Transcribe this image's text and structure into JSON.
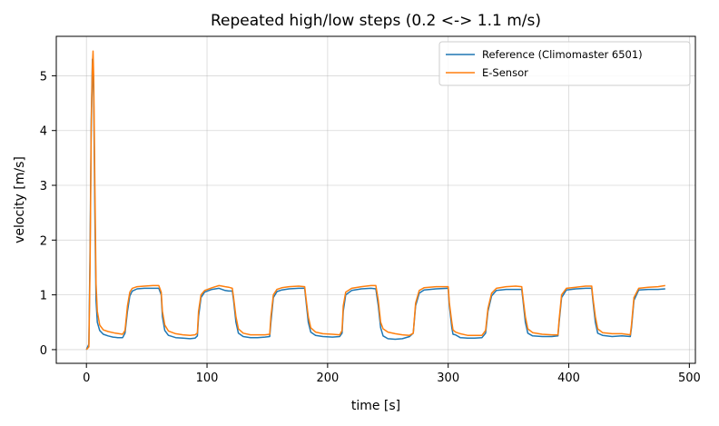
{
  "chart_data": {
    "type": "line",
    "title": "Repeated high/low steps (0.2 <-> 1.1 m/s)",
    "xlabel": "time [s]",
    "ylabel": "velocity [m/s]",
    "xlim": [
      -25,
      505
    ],
    "ylim": [
      -0.25,
      5.72
    ],
    "xticks": [
      0,
      100,
      200,
      300,
      400,
      500
    ],
    "yticks": [
      0,
      1,
      2,
      3,
      4,
      5
    ],
    "grid": true,
    "legend_position": "top-right",
    "series": [
      {
        "name": "Reference (Climomaster 6501)",
        "color": "#1f77b4",
        "points": [
          [
            0,
            0
          ],
          [
            2,
            0.1
          ],
          [
            3,
            1.8
          ],
          [
            4,
            4.2
          ],
          [
            5,
            5.3
          ],
          [
            6,
            4.6
          ],
          [
            7,
            2.5
          ],
          [
            8,
            0.9
          ],
          [
            9,
            0.5
          ],
          [
            11,
            0.35
          ],
          [
            14,
            0.28
          ],
          [
            18,
            0.25
          ],
          [
            22,
            0.23
          ],
          [
            26,
            0.22
          ],
          [
            30,
            0.22
          ],
          [
            32,
            0.3
          ],
          [
            34,
            0.7
          ],
          [
            36,
            0.98
          ],
          [
            38,
            1.07
          ],
          [
            42,
            1.11
          ],
          [
            48,
            1.12
          ],
          [
            55,
            1.12
          ],
          [
            60,
            1.12
          ],
          [
            62,
            1.0
          ],
          [
            63,
            0.6
          ],
          [
            65,
            0.35
          ],
          [
            68,
            0.26
          ],
          [
            74,
            0.22
          ],
          [
            80,
            0.21
          ],
          [
            86,
            0.2
          ],
          [
            90,
            0.21
          ],
          [
            92,
            0.25
          ],
          [
            93,
            0.6
          ],
          [
            95,
            0.95
          ],
          [
            98,
            1.05
          ],
          [
            104,
            1.1
          ],
          [
            110,
            1.12
          ],
          [
            115,
            1.08
          ],
          [
            118,
            1.07
          ],
          [
            121,
            1.07
          ],
          [
            122,
            0.9
          ],
          [
            124,
            0.5
          ],
          [
            126,
            0.3
          ],
          [
            130,
            0.24
          ],
          [
            136,
            0.22
          ],
          [
            142,
            0.22
          ],
          [
            148,
            0.23
          ],
          [
            152,
            0.24
          ],
          [
            153,
            0.5
          ],
          [
            155,
            0.95
          ],
          [
            158,
            1.06
          ],
          [
            162,
            1.09
          ],
          [
            168,
            1.11
          ],
          [
            176,
            1.12
          ],
          [
            181,
            1.12
          ],
          [
            182,
            0.9
          ],
          [
            184,
            0.5
          ],
          [
            186,
            0.32
          ],
          [
            190,
            0.26
          ],
          [
            196,
            0.24
          ],
          [
            204,
            0.23
          ],
          [
            210,
            0.24
          ],
          [
            212,
            0.3
          ],
          [
            213,
            0.7
          ],
          [
            215,
            1.0
          ],
          [
            220,
            1.08
          ],
          [
            228,
            1.11
          ],
          [
            236,
            1.12
          ],
          [
            240,
            1.11
          ],
          [
            242,
            0.8
          ],
          [
            244,
            0.4
          ],
          [
            246,
            0.25
          ],
          [
            250,
            0.2
          ],
          [
            256,
            0.19
          ],
          [
            262,
            0.2
          ],
          [
            268,
            0.24
          ],
          [
            271,
            0.3
          ],
          [
            273,
            0.8
          ],
          [
            276,
            1.03
          ],
          [
            280,
            1.09
          ],
          [
            290,
            1.11
          ],
          [
            300,
            1.12
          ],
          [
            301,
            0.8
          ],
          [
            303,
            0.4
          ],
          [
            304,
            0.28
          ],
          [
            306,
            0.27
          ],
          [
            310,
            0.22
          ],
          [
            316,
            0.21
          ],
          [
            322,
            0.21
          ],
          [
            328,
            0.22
          ],
          [
            331,
            0.3
          ],
          [
            333,
            0.7
          ],
          [
            336,
            0.98
          ],
          [
            340,
            1.08
          ],
          [
            348,
            1.1
          ],
          [
            356,
            1.1
          ],
          [
            361,
            1.1
          ],
          [
            362,
            0.9
          ],
          [
            364,
            0.5
          ],
          [
            366,
            0.3
          ],
          [
            370,
            0.25
          ],
          [
            378,
            0.24
          ],
          [
            386,
            0.24
          ],
          [
            391,
            0.25
          ],
          [
            392,
            0.5
          ],
          [
            394,
            0.95
          ],
          [
            398,
            1.09
          ],
          [
            406,
            1.11
          ],
          [
            414,
            1.12
          ],
          [
            419,
            1.12
          ],
          [
            420,
            0.9
          ],
          [
            422,
            0.5
          ],
          [
            424,
            0.3
          ],
          [
            428,
            0.26
          ],
          [
            436,
            0.24
          ],
          [
            444,
            0.25
          ],
          [
            451,
            0.24
          ],
          [
            452,
            0.4
          ],
          [
            454,
            0.9
          ],
          [
            458,
            1.09
          ],
          [
            466,
            1.1
          ],
          [
            474,
            1.1
          ],
          [
            480,
            1.11
          ]
        ]
      },
      {
        "name": "E-Sensor",
        "color": "#ff7f0e",
        "points": [
          [
            0,
            0
          ],
          [
            2,
            0.05
          ],
          [
            3,
            1.5
          ],
          [
            4,
            4.0
          ],
          [
            5,
            5.2
          ],
          [
            5.5,
            5.45
          ],
          [
            6,
            5.0
          ],
          [
            7,
            3.0
          ],
          [
            8,
            1.2
          ],
          [
            9,
            0.7
          ],
          [
            11,
            0.45
          ],
          [
            14,
            0.36
          ],
          [
            18,
            0.33
          ],
          [
            24,
            0.3
          ],
          [
            30,
            0.28
          ],
          [
            32,
            0.35
          ],
          [
            34,
            0.8
          ],
          [
            36,
            1.05
          ],
          [
            38,
            1.12
          ],
          [
            42,
            1.15
          ],
          [
            48,
            1.16
          ],
          [
            55,
            1.17
          ],
          [
            60,
            1.17
          ],
          [
            62,
            1.05
          ],
          [
            63,
            0.7
          ],
          [
            65,
            0.45
          ],
          [
            68,
            0.34
          ],
          [
            74,
            0.29
          ],
          [
            80,
            0.27
          ],
          [
            86,
            0.26
          ],
          [
            90,
            0.27
          ],
          [
            92,
            0.3
          ],
          [
            93,
            0.7
          ],
          [
            95,
            1.0
          ],
          [
            98,
            1.08
          ],
          [
            104,
            1.13
          ],
          [
            110,
            1.17
          ],
          [
            115,
            1.15
          ],
          [
            118,
            1.14
          ],
          [
            121,
            1.12
          ],
          [
            122,
            0.95
          ],
          [
            124,
            0.6
          ],
          [
            126,
            0.38
          ],
          [
            130,
            0.3
          ],
          [
            136,
            0.27
          ],
          [
            142,
            0.27
          ],
          [
            148,
            0.27
          ],
          [
            152,
            0.28
          ],
          [
            153,
            0.6
          ],
          [
            155,
            1.0
          ],
          [
            158,
            1.1
          ],
          [
            162,
            1.13
          ],
          [
            168,
            1.15
          ],
          [
            176,
            1.16
          ],
          [
            181,
            1.15
          ],
          [
            182,
            0.95
          ],
          [
            184,
            0.6
          ],
          [
            186,
            0.4
          ],
          [
            190,
            0.32
          ],
          [
            196,
            0.29
          ],
          [
            204,
            0.28
          ],
          [
            210,
            0.27
          ],
          [
            212,
            0.35
          ],
          [
            213,
            0.8
          ],
          [
            215,
            1.05
          ],
          [
            220,
            1.12
          ],
          [
            228,
            1.15
          ],
          [
            236,
            1.17
          ],
          [
            240,
            1.17
          ],
          [
            242,
            0.9
          ],
          [
            244,
            0.5
          ],
          [
            246,
            0.38
          ],
          [
            250,
            0.32
          ],
          [
            256,
            0.29
          ],
          [
            262,
            0.27
          ],
          [
            268,
            0.26
          ],
          [
            271,
            0.3
          ],
          [
            273,
            0.85
          ],
          [
            276,
            1.08
          ],
          [
            280,
            1.13
          ],
          [
            290,
            1.15
          ],
          [
            300,
            1.15
          ],
          [
            301,
            0.85
          ],
          [
            303,
            0.5
          ],
          [
            304,
            0.36
          ],
          [
            306,
            0.32
          ],
          [
            310,
            0.29
          ],
          [
            316,
            0.26
          ],
          [
            322,
            0.26
          ],
          [
            328,
            0.26
          ],
          [
            331,
            0.35
          ],
          [
            333,
            0.75
          ],
          [
            336,
            1.03
          ],
          [
            340,
            1.12
          ],
          [
            348,
            1.15
          ],
          [
            356,
            1.16
          ],
          [
            361,
            1.15
          ],
          [
            362,
            0.95
          ],
          [
            364,
            0.6
          ],
          [
            366,
            0.38
          ],
          [
            370,
            0.31
          ],
          [
            378,
            0.28
          ],
          [
            386,
            0.27
          ],
          [
            391,
            0.27
          ],
          [
            392,
            0.55
          ],
          [
            394,
            1.0
          ],
          [
            398,
            1.12
          ],
          [
            406,
            1.14
          ],
          [
            414,
            1.16
          ],
          [
            419,
            1.16
          ],
          [
            420,
            0.95
          ],
          [
            422,
            0.6
          ],
          [
            424,
            0.38
          ],
          [
            428,
            0.31
          ],
          [
            436,
            0.29
          ],
          [
            444,
            0.29
          ],
          [
            451,
            0.27
          ],
          [
            452,
            0.45
          ],
          [
            454,
            0.95
          ],
          [
            458,
            1.12
          ],
          [
            466,
            1.14
          ],
          [
            474,
            1.15
          ],
          [
            480,
            1.17
          ]
        ]
      }
    ]
  }
}
